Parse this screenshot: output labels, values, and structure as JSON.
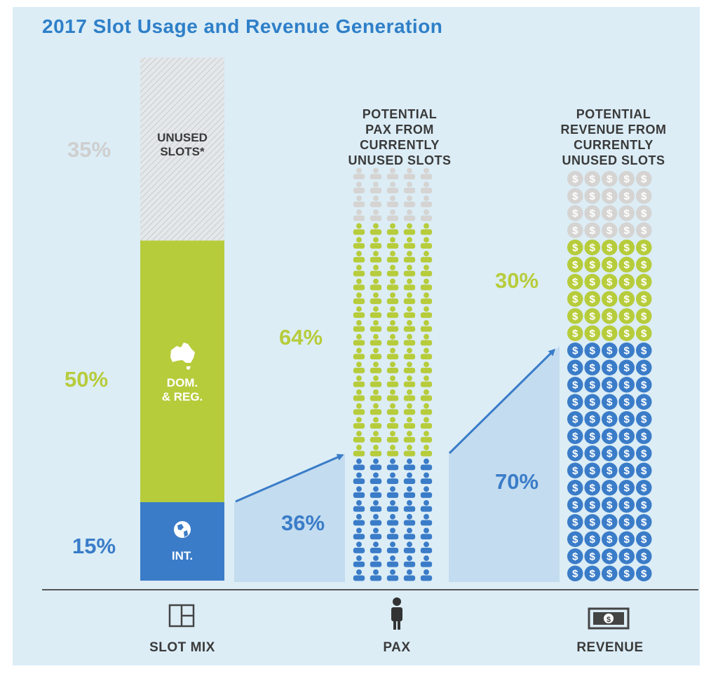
{
  "title": "2017 Slot Usage and Revenue Generation",
  "colors": {
    "unused": "#d5d4d2",
    "domestic": "#b7cc3b",
    "international": "#3a7cc8",
    "arrow_fill": "#c3dcef",
    "arrow_line": "#3a7cc8"
  },
  "chart_data": [
    {
      "type": "bar",
      "name": "slot-mix",
      "categories": [
        "UNUSED SLOTS*",
        "DOM. & REG.",
        "INT."
      ],
      "values": [
        35,
        50,
        15
      ],
      "value_labels": [
        "35%",
        "50%",
        "15%"
      ],
      "footer": "SLOT MIX"
    },
    {
      "type": "bar",
      "name": "pax",
      "heading": "POTENTIAL\nPAX FROM\nCURRENTLY\nUNUSED SLOTS",
      "categories": [
        "DOM. & REG.",
        "INT."
      ],
      "values": [
        64,
        36
      ],
      "value_labels": [
        "64%",
        "36%"
      ],
      "footer": "PAX"
    },
    {
      "type": "bar",
      "name": "revenue",
      "heading": "POTENTIAL\nREVENUE FROM\nCURRENTLY\nUNUSED SLOTS",
      "categories": [
        "DOM. & REG.",
        "INT."
      ],
      "values": [
        30,
        70
      ],
      "value_labels": [
        "30%",
        "70%"
      ],
      "footer": "REVENUE"
    }
  ],
  "bar_labels": {
    "unused": "UNUSED\nSLOTS*",
    "domestic": "DOM.\n& REG.",
    "international": "INT."
  },
  "icons": {
    "domestic": "australia-icon",
    "international": "globe-icon",
    "pax": "person-icon",
    "revenue": "dollar-coin-icon",
    "slot_mix": "slot-grid-icon",
    "banknote": "banknote-icon"
  }
}
